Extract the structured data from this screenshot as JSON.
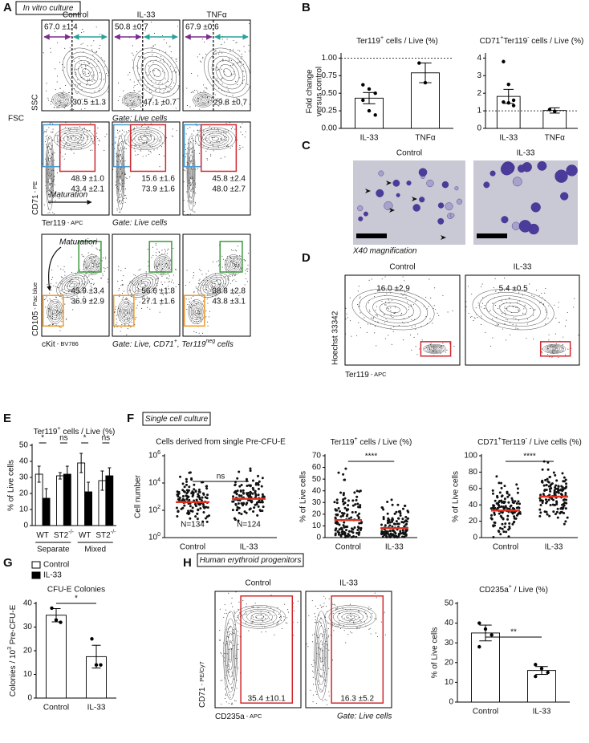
{
  "figure": {
    "A": {
      "letter": "A",
      "box": "In vitro culture",
      "columns": [
        "Control",
        "IL-33",
        "TNFα"
      ],
      "rows": [
        {
          "y_label": "SSC",
          "x_label": "FSC",
          "gate": "Gate: Live cells",
          "stats": [
            [
              "67.0 ±1.4",
              "30.5 ±1.3"
            ],
            [
              "50.8 ±0.7",
              "47.1 ±0.7"
            ],
            [
              "67.9 ±0.6",
              "29.8 ±0.7"
            ]
          ]
        },
        {
          "y_label": [
            {
              "text": "CD71"
            },
            {
              "text": " - PE",
              "small": true
            }
          ],
          "x_label": [
            {
              "text": "Ter119"
            },
            {
              "text": " - APC",
              "small": true
            }
          ],
          "gate": "Gate: Live cells",
          "annotation": "Maturation",
          "stats": [
            [
              "48.9 ±1.0",
              "43.4 ±2.1"
            ],
            [
              "15.6 ±1.6",
              "73.9 ±1.6"
            ],
            [
              "45.8 ±2.4",
              "48.0 ±2.7"
            ]
          ]
        },
        {
          "y_label": [
            {
              "text": "CD105"
            },
            {
              "text": " - Pac blue",
              "small": true
            }
          ],
          "x_label": [
            {
              "text": "cKit"
            },
            {
              "text": " - BV786",
              "small": true
            }
          ],
          "gate": [
            {
              "text": "Gate: Live, CD71"
            },
            {
              "text": "+",
              "sup": true
            },
            {
              "text": ", Ter119"
            },
            {
              "text": "neg",
              "sup": true
            },
            {
              "text": " cells"
            }
          ],
          "annotation": "Maturation",
          "stats": [
            [
              "45.9 ±3.4",
              "36.9 ±2.9"
            ],
            [
              "56.6 ±1.8",
              "27.1 ±1.6"
            ],
            [
              "38.8 ±2.8",
              "43.8 ±3.1"
            ]
          ]
        }
      ]
    },
    "B": {
      "letter": "B",
      "charts": [
        {
          "type": "bar",
          "title": [
            {
              "text": "Ter119"
            },
            {
              "text": "+",
              "sup": true
            },
            {
              "text": " cells / Live (%)"
            }
          ],
          "y_label": [
            "Fold change",
            "versus control"
          ],
          "categories": [
            "IL-33",
            "TNFα"
          ],
          "values": [
            0.43,
            0.79
          ],
          "errors": [
            0.08,
            0.14
          ],
          "points": [
            [
              0.62,
              0.56,
              0.5,
              0.4,
              0.25,
              0.19
            ],
            [
              0.93,
              0.65
            ]
          ],
          "color": "#ffffff",
          "ylim": [
            0,
            1.05
          ],
          "yticks": [
            {
              "value": 0,
              "label": "0.00"
            },
            {
              "value": 0.25,
              "label": "0.25"
            },
            {
              "value": 0.5,
              "label": "0.50"
            },
            {
              "value": 0.75,
              "label": "0.75"
            },
            {
              "value": 1,
              "label": "1.00"
            }
          ],
          "reference_line": 1
        },
        {
          "type": "bar",
          "title": [
            {
              "text": "CD71"
            },
            {
              "text": "+",
              "sup": true
            },
            {
              "text": "Ter119"
            },
            {
              "text": "-",
              "sup": true
            },
            {
              "text": " cells / Live (%)"
            }
          ],
          "categories": [
            "IL-33",
            "TNFα"
          ],
          "values": [
            1.82,
            1.02
          ],
          "errors": [
            0.4,
            0.15
          ],
          "points": [
            [
              3.8,
              2.5,
              1.6,
              1.5,
              1.45,
              1.3
            ],
            [
              1.07,
              0.97
            ]
          ],
          "color": "#ffffff",
          "ylim": [
            0,
            4.2
          ],
          "yticks": [
            0,
            1,
            2,
            3,
            4
          ],
          "reference_line": 1
        }
      ]
    },
    "C": {
      "letter": "C",
      "columns": [
        "Control",
        "IL-33"
      ],
      "caption": "X40 magnification"
    },
    "D": {
      "letter": "D",
      "columns": [
        "Control",
        "IL-33"
      ],
      "y_label": "Hoechst 33342",
      "x_label": [
        {
          "text": "Ter119"
        },
        {
          "text": " - APC",
          "small": true
        }
      ],
      "stats": [
        "16.0 ±2.9",
        "5.4 ±0.5"
      ]
    },
    "E": {
      "letter": "E",
      "chart": {
        "type": "bar",
        "title": [
          {
            "text": "Ter119"
          },
          {
            "text": "+",
            "sup": true
          },
          {
            "text": " cells / Live (%)"
          }
        ],
        "y_label": "% of Live cells",
        "categories": [
          [
            {
              "text": "WT"
            }
          ],
          [
            {
              "text": "ST2"
            },
            {
              "text": "-/-",
              "sup": true
            }
          ],
          [
            {
              "text": "WT"
            }
          ],
          [
            {
              "text": "ST2"
            },
            {
              "text": "-/-",
              "sup": true
            }
          ]
        ],
        "series": [
          {
            "name": "Control",
            "color": "#ffffff",
            "values": [
              32,
              31,
              39,
              28
            ],
            "errors": [
              5,
              2,
              6,
              6
            ]
          },
          {
            "name": "IL-33",
            "color": "#000000",
            "values": [
              17,
              32,
              21,
              31
            ],
            "errors": [
              6,
              5,
              6,
              5
            ]
          }
        ],
        "groups": [
          "Separate",
          "Mixed"
        ],
        "significance": [
          "*",
          "ns",
          "*",
          "ns"
        ],
        "ylim": [
          0,
          50
        ],
        "yticks": [
          0,
          10,
          20,
          30,
          40,
          50
        ]
      }
    },
    "F": {
      "letter": "F",
      "box": "Single cell culture",
      "charts": [
        {
          "type": "dot",
          "title": "Cells derived from single Pre-CFU-E",
          "y_label": "Cell number",
          "log": true,
          "categories": [
            "Control",
            "IL-33"
          ],
          "medians": [
            400,
            700
          ],
          "ylim": [
            1,
            1000000
          ],
          "yticks": [
            {
              "value": 1,
              "label": "10",
              "exp": "0"
            },
            {
              "value": 100,
              "label": "10",
              "exp": "2"
            },
            {
              "value": 10000,
              "label": "10",
              "exp": "4"
            },
            {
              "value": 1000000,
              "label": "10",
              "exp": "6"
            }
          ],
          "n_labels": [
            "N=134",
            "N=124"
          ],
          "significance": "ns"
        },
        {
          "type": "dot",
          "title": [
            {
              "text": "Ter119"
            },
            {
              "text": "+",
              "sup": true
            },
            {
              "text": " cells / Live (%)"
            }
          ],
          "y_label": "% of Live cells",
          "categories": [
            "Control",
            "IL-33"
          ],
          "medians": [
            15,
            8
          ],
          "ylim": [
            0,
            70
          ],
          "yticks": [
            0,
            10,
            20,
            30,
            40,
            50,
            60,
            70
          ],
          "significance": "****"
        },
        {
          "type": "dot",
          "title": [
            {
              "text": "CD71"
            },
            {
              "text": "+",
              "sup": true
            },
            {
              "text": "Ter119"
            },
            {
              "text": "-",
              "sup": true
            },
            {
              "text": " / Live cells (%)"
            }
          ],
          "y_label": "% of Live cells",
          "categories": [
            "Control",
            "IL-33"
          ],
          "medians": [
            33,
            50
          ],
          "ylim": [
            0,
            100
          ],
          "yticks": [
            0,
            20,
            40,
            60,
            80,
            100
          ],
          "significance": "****"
        }
      ]
    },
    "G": {
      "letter": "G",
      "chart": {
        "type": "bar",
        "title": "CFU-E Colonies",
        "y_label": [
          {
            "text": "Colonies / 10"
          },
          {
            "text": "3",
            "sup": true
          },
          {
            "text": " Pre-CFU-E"
          }
        ],
        "categories": [
          "Control",
          "IL-33"
        ],
        "values": [
          35,
          17.5
        ],
        "errors": [
          2.8,
          4.8
        ],
        "points": [
          [
            38,
            33,
            32
          ],
          [
            25,
            14,
            14
          ]
        ],
        "color": "#ffffff",
        "ylim": [
          0,
          40
        ],
        "yticks": [
          0,
          10,
          20,
          30,
          40
        ],
        "significance": "*"
      }
    },
    "H": {
      "letter": "H",
      "box": "Human erythroid progenitors",
      "columns": [
        "Control",
        "IL-33"
      ],
      "y_label": [
        {
          "text": "CD71"
        },
        {
          "text": " - PE/Cy7",
          "small": true
        }
      ],
      "x_label": [
        {
          "text": "CD235a"
        },
        {
          "text": " - APC",
          "small": true
        }
      ],
      "gate": "Gate: Live cells",
      "stats": [
        "35.4 ±10.1",
        "16.3 ±5.2"
      ],
      "chart": {
        "type": "bar",
        "title": [
          {
            "text": "CD235a"
          },
          {
            "text": "+",
            "sup": true
          },
          {
            "text": " / Live (%)"
          }
        ],
        "y_label": "% of Live cells",
        "categories": [
          "Control",
          "IL-33"
        ],
        "values": [
          35,
          16
        ],
        "errors": [
          4,
          2
        ],
        "points": [
          [
            40,
            37,
            34,
            28
          ],
          [
            19,
            17,
            15,
            13
          ]
        ],
        "color": "#ffffff",
        "ylim": [
          0,
          50
        ],
        "yticks": [
          0,
          10,
          20,
          30,
          40,
          50
        ],
        "significance": "**"
      }
    }
  }
}
